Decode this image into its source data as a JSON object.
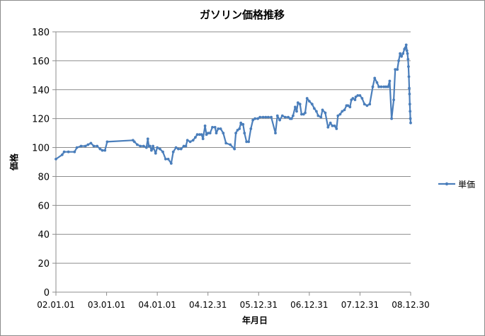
{
  "chart_data": {
    "type": "line",
    "title": "ガソリン価格推移",
    "xlabel": "年月日",
    "ylabel": "価格",
    "ylim": [
      0,
      180
    ],
    "y_ticks": [
      0,
      20,
      40,
      60,
      80,
      100,
      120,
      140,
      160,
      180
    ],
    "x_range": [
      "2002-01-01",
      "2008-12-30"
    ],
    "x_ticks": [
      {
        "label": "02.01.01",
        "date": "2002-01-01"
      },
      {
        "label": "03.01.01",
        "date": "2003-01-01"
      },
      {
        "label": "04.01.01",
        "date": "2004-01-01"
      },
      {
        "label": "04.12.31",
        "date": "2004-12-31"
      },
      {
        "label": "05.12.31",
        "date": "2005-12-31"
      },
      {
        "label": "06.12.31",
        "date": "2006-12-31"
      },
      {
        "label": "07.12.31",
        "date": "2007-12-31"
      },
      {
        "label": "08.12.30",
        "date": "2008-12-30"
      }
    ],
    "grid": true,
    "legend_position": "right",
    "series": [
      {
        "name": "単価",
        "color": "#4a7ebb",
        "points": [
          [
            "2002-01-01",
            92
          ],
          [
            "2002-02-15",
            95
          ],
          [
            "2002-03-01",
            97
          ],
          [
            "2002-04-01",
            97
          ],
          [
            "2002-05-15",
            97
          ],
          [
            "2002-06-01",
            100
          ],
          [
            "2002-07-01",
            101
          ],
          [
            "2002-08-01",
            101
          ],
          [
            "2002-08-20",
            102
          ],
          [
            "2002-09-10",
            103
          ],
          [
            "2002-10-01",
            101
          ],
          [
            "2002-10-25",
            101
          ],
          [
            "2002-11-15",
            99
          ],
          [
            "2002-12-01",
            98
          ],
          [
            "2002-12-20",
            98
          ],
          [
            "2003-01-05",
            104
          ],
          [
            "2003-07-10",
            105
          ],
          [
            "2003-07-20",
            104
          ],
          [
            "2003-08-10",
            102
          ],
          [
            "2003-09-01",
            101
          ],
          [
            "2003-09-25",
            101
          ],
          [
            "2003-10-15",
            100
          ],
          [
            "2003-10-25",
            106
          ],
          [
            "2003-11-01",
            101
          ],
          [
            "2003-11-10",
            101
          ],
          [
            "2003-11-20",
            98
          ],
          [
            "2003-11-25",
            99
          ],
          [
            "2003-12-01",
            101
          ],
          [
            "2003-12-20",
            96
          ],
          [
            "2004-01-01",
            100
          ],
          [
            "2004-01-20",
            99
          ],
          [
            "2004-02-10",
            97
          ],
          [
            "2004-03-01",
            92
          ],
          [
            "2004-03-20",
            92
          ],
          [
            "2004-04-10",
            89
          ],
          [
            "2004-04-25",
            97
          ],
          [
            "2004-05-15",
            100
          ],
          [
            "2004-06-01",
            99
          ],
          [
            "2004-06-20",
            99
          ],
          [
            "2004-07-10",
            101
          ],
          [
            "2004-07-25",
            101
          ],
          [
            "2004-08-05",
            105
          ],
          [
            "2004-08-25",
            104
          ],
          [
            "2004-09-15",
            105
          ],
          [
            "2004-10-01",
            107
          ],
          [
            "2004-10-15",
            109
          ],
          [
            "2004-11-01",
            109
          ],
          [
            "2004-11-15",
            109
          ],
          [
            "2004-11-25",
            106
          ],
          [
            "2004-12-10",
            115
          ],
          [
            "2004-12-20",
            109
          ],
          [
            "2005-01-01",
            110
          ],
          [
            "2005-01-15",
            110
          ],
          [
            "2005-02-01",
            114
          ],
          [
            "2005-02-20",
            114
          ],
          [
            "2005-03-01",
            110
          ],
          [
            "2005-03-15",
            113
          ],
          [
            "2005-04-01",
            113
          ],
          [
            "2005-04-20",
            110
          ],
          [
            "2005-05-10",
            103
          ],
          [
            "2005-06-10",
            102
          ],
          [
            "2005-07-10",
            99
          ],
          [
            "2005-07-20",
            110
          ],
          [
            "2005-08-01",
            112
          ],
          [
            "2005-08-15",
            113
          ],
          [
            "2005-08-25",
            117
          ],
          [
            "2005-09-01",
            116
          ],
          [
            "2005-09-10",
            116
          ],
          [
            "2005-09-20",
            110
          ],
          [
            "2005-10-05",
            104
          ],
          [
            "2005-10-20",
            104
          ],
          [
            "2005-11-05",
            113
          ],
          [
            "2005-11-20",
            119
          ],
          [
            "2005-12-05",
            120
          ],
          [
            "2005-12-25",
            120
          ],
          [
            "2006-01-10",
            121
          ],
          [
            "2006-02-01",
            121
          ],
          [
            "2006-02-20",
            121
          ],
          [
            "2006-03-10",
            121
          ],
          [
            "2006-04-01",
            121
          ],
          [
            "2006-05-01",
            110
          ],
          [
            "2006-05-15",
            122
          ],
          [
            "2006-06-01",
            119
          ],
          [
            "2006-06-20",
            122
          ],
          [
            "2006-07-10",
            121
          ],
          [
            "2006-08-01",
            121
          ],
          [
            "2006-08-15",
            120
          ],
          [
            "2006-08-25",
            120
          ],
          [
            "2006-09-05",
            122
          ],
          [
            "2006-09-20",
            128
          ],
          [
            "2006-10-01",
            125
          ],
          [
            "2006-10-10",
            131
          ],
          [
            "2006-10-25",
            130
          ],
          [
            "2006-11-05",
            123
          ],
          [
            "2006-11-20",
            123
          ],
          [
            "2006-12-01",
            124
          ],
          [
            "2006-12-15",
            134
          ],
          [
            "2006-12-31",
            132
          ],
          [
            "2007-01-20",
            130
          ],
          [
            "2007-02-05",
            127
          ],
          [
            "2007-02-20",
            125
          ],
          [
            "2007-03-05",
            122
          ],
          [
            "2007-03-25",
            121
          ],
          [
            "2007-04-05",
            126
          ],
          [
            "2007-04-25",
            124
          ],
          [
            "2007-05-15",
            114
          ],
          [
            "2007-06-01",
            117
          ],
          [
            "2007-06-15",
            115
          ],
          [
            "2007-07-01",
            115
          ],
          [
            "2007-07-15",
            113
          ],
          [
            "2007-07-25",
            122
          ],
          [
            "2007-08-10",
            123
          ],
          [
            "2007-08-25",
            125
          ],
          [
            "2007-09-10",
            126
          ],
          [
            "2007-09-25",
            129
          ],
          [
            "2007-10-05",
            129
          ],
          [
            "2007-10-20",
            128
          ],
          [
            "2007-10-30",
            133
          ],
          [
            "2007-11-10",
            134
          ],
          [
            "2007-11-25",
            133
          ],
          [
            "2007-12-01",
            135
          ],
          [
            "2007-12-15",
            136
          ],
          [
            "2007-12-31",
            136
          ],
          [
            "2008-01-15",
            134
          ],
          [
            "2008-02-01",
            130
          ],
          [
            "2008-02-20",
            129
          ],
          [
            "2008-03-10",
            130
          ],
          [
            "2008-04-01",
            142
          ],
          [
            "2008-04-15",
            148
          ],
          [
            "2008-05-01",
            145
          ],
          [
            "2008-05-15",
            142
          ],
          [
            "2008-06-01",
            142
          ],
          [
            "2008-06-20",
            142
          ],
          [
            "2008-07-05",
            142
          ],
          [
            "2008-07-20",
            142
          ],
          [
            "2008-08-01",
            146
          ],
          [
            "2008-08-15",
            120
          ],
          [
            "2008-08-30",
            133
          ],
          [
            "2008-09-10",
            154
          ],
          [
            "2008-09-25",
            154
          ],
          [
            "2008-10-05",
            160
          ],
          [
            "2008-10-15",
            165
          ],
          [
            "2008-10-25",
            163
          ],
          [
            "2008-11-05",
            165
          ],
          [
            "2008-11-15",
            168
          ],
          [
            "2008-11-22",
            169
          ],
          [
            "2008-11-28",
            171
          ],
          [
            "2008-12-03",
            167
          ],
          [
            "2008-12-07",
            165
          ],
          [
            "2008-12-11",
            161
          ],
          [
            "2008-12-14",
            156
          ],
          [
            "2008-12-17",
            149
          ],
          [
            "2008-12-20",
            141
          ],
          [
            "2008-12-22",
            137
          ],
          [
            "2008-12-24",
            130
          ],
          [
            "2008-12-26",
            125
          ],
          [
            "2008-12-28",
            120
          ],
          [
            "2008-12-30",
            117
          ]
        ]
      }
    ]
  }
}
